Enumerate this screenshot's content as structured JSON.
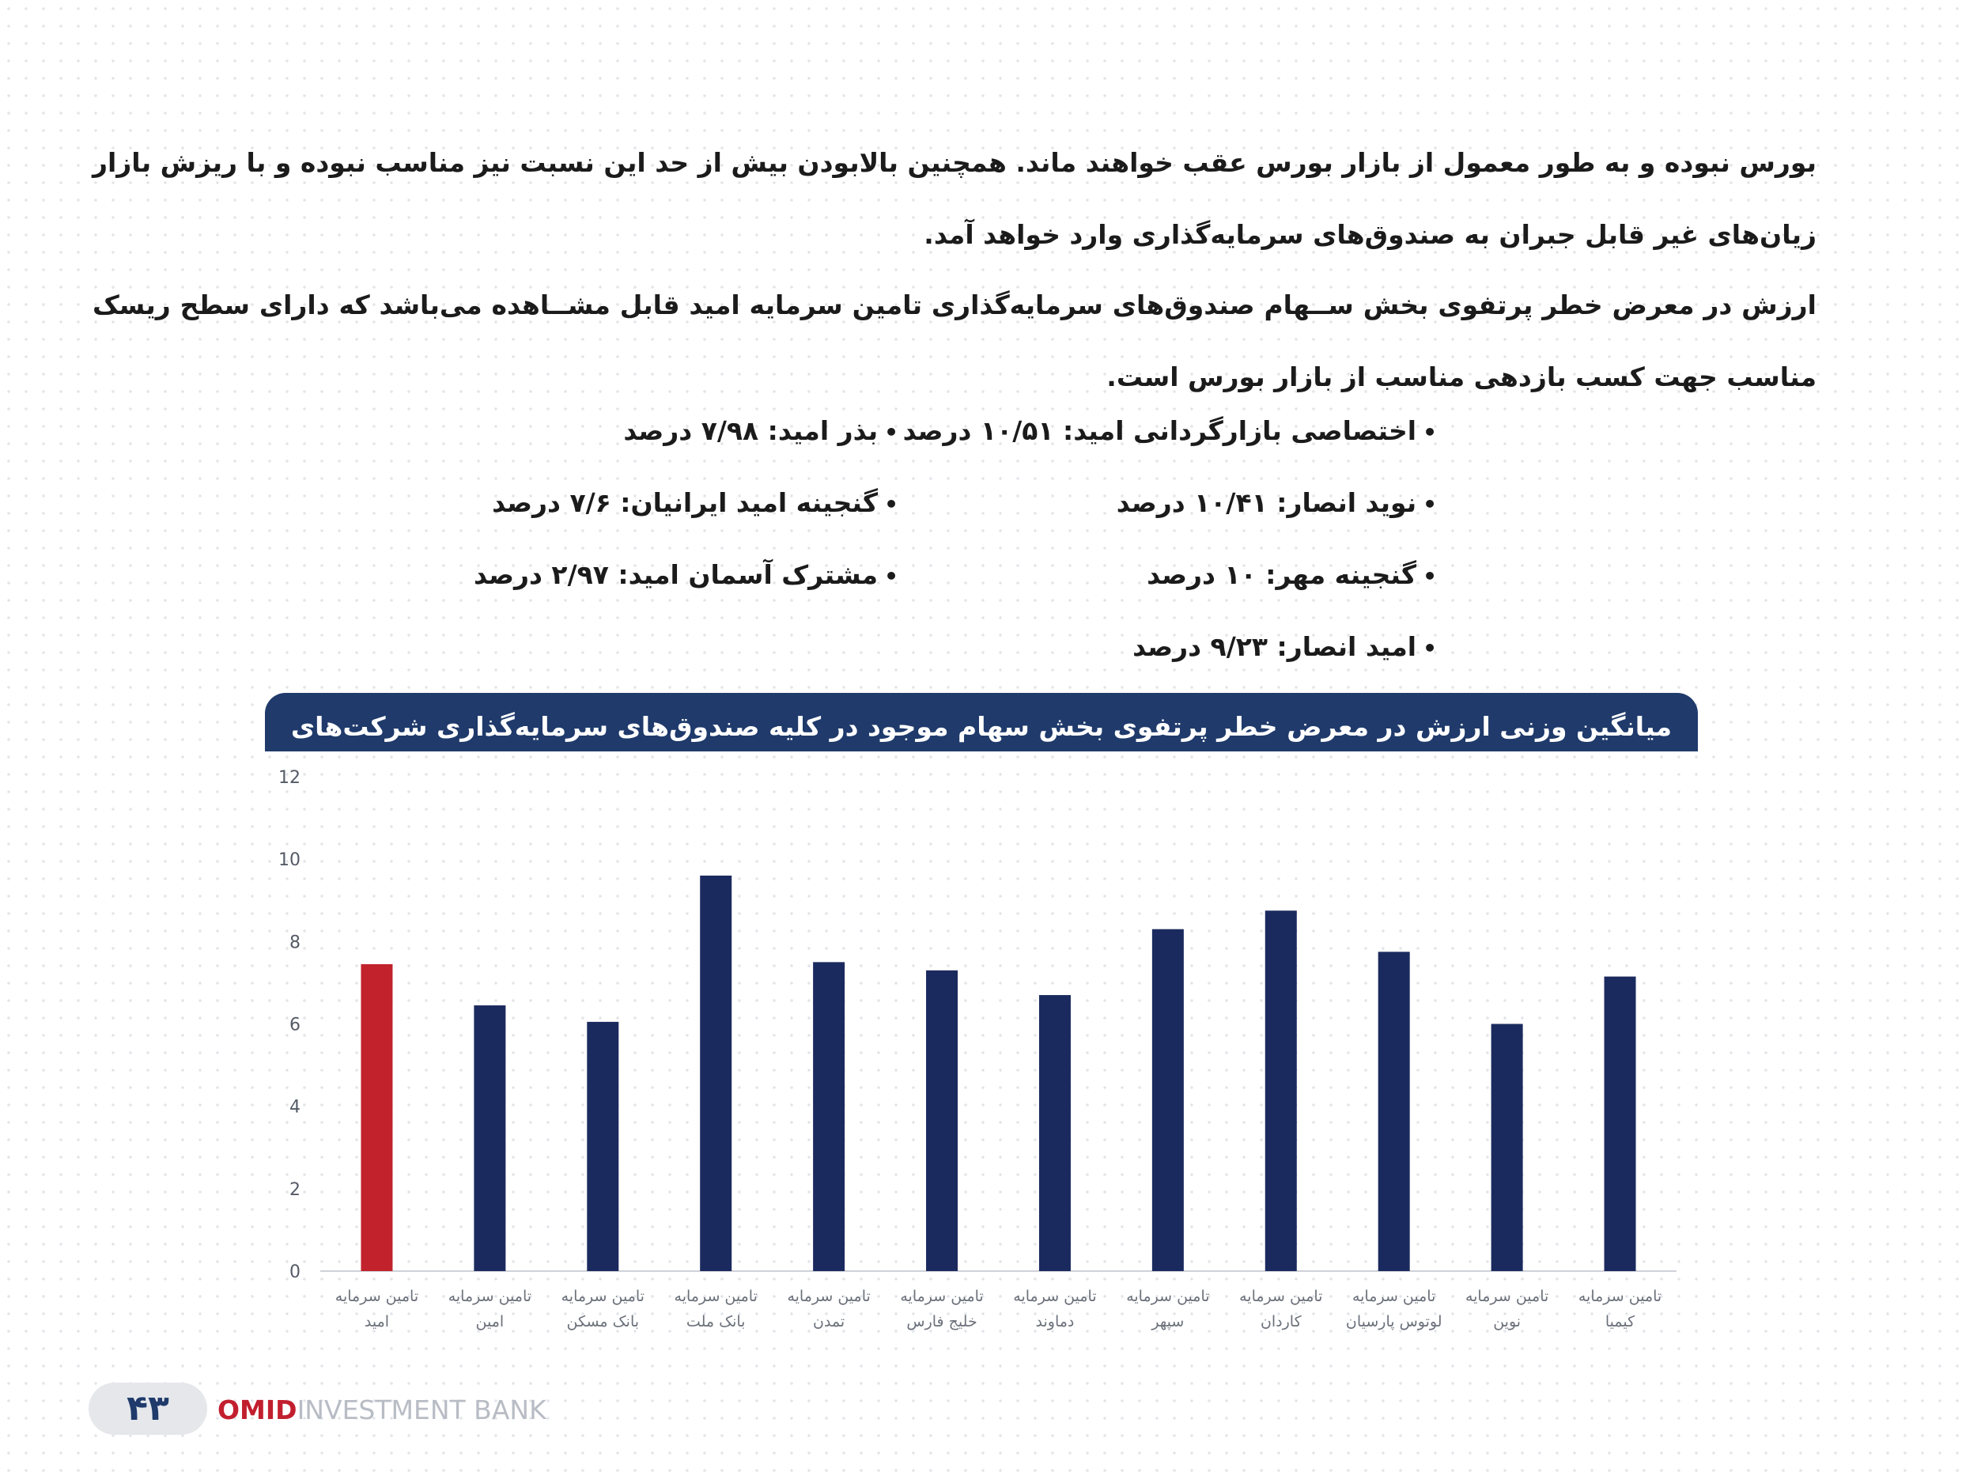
{
  "paragraphs": [
    "بورس نبوده و به طور معمول از بازار بورس عقب خواهند ماند. همچنین بالابودن بیش از حد این نسبت نیز مناسب نبوده و با ریزش بازار زیان‌های غیر قابل جبران به صندوق‌های سرمایه‌گذاری وارد خواهد آمد.",
    "ارزش در معرض خطر پرتفوی بخش ســهام صندوق‌های سرمایه‌گذاری تامین سرمایه امید قابل مشــاهده می‌باشد که دارای سطح ریسک مناسب جهت کسب بازدهی مناسب از بازار بورس است."
  ],
  "bullets_right": [
    "اختصاصی بازارگردانی امید: ۱۰/۵۱ درصد",
    "نوید انصار: ۱۰/۴۱ درصد",
    "گنجینه مهر: ۱۰ درصد",
    "امید انصار: ۹/۲۳ درصد"
  ],
  "bullets_left": [
    "بذر امید: ۷/۹۸ درصد",
    "گنجینه امید ایرانیان: ۷/۶ درصد",
    "مشترک آسمان امید: ۲/۹۷ درصد"
  ],
  "chart_header": "میانگین وزنی ارزش در معرض خطر  پرتفوی بخش سهام موجود در کلیه صندوق‌های سرمایه‌گذاری شرکت‌های تامین سرمایه",
  "chart_data": {
    "type": "bar",
    "title": "میانگین وزنی ارزش در معرض خطر  پرتفوی بخش سهام موجود در کلیه صندوق‌های سرمایه‌گذاری شرکت‌های تامین سرمایه",
    "categories": [
      [
        "تامین سرمایه",
        "امید"
      ],
      [
        "تامین سرمایه",
        "امین"
      ],
      [
        "تامین سرمایه",
        "بانک مسکن"
      ],
      [
        "تامین سرمایه",
        "بانک ملت"
      ],
      [
        "تامین سرمایه",
        "تمدن"
      ],
      [
        "تامین سرمایه",
        "خلیج فارس"
      ],
      [
        "تامین سرمایه",
        "دماوند"
      ],
      [
        "تامین سرمایه",
        "سپهر"
      ],
      [
        "تامین سرمایه",
        "کاردان"
      ],
      [
        "تامین سرمایه",
        "لوتوس پارسیان"
      ],
      [
        "تامین سرمایه",
        "نوین"
      ],
      [
        "تامین سرمایه",
        "کیمیا"
      ]
    ],
    "values": [
      7.45,
      6.45,
      6.05,
      9.6,
      7.5,
      7.3,
      6.7,
      8.3,
      8.75,
      7.75,
      6.0,
      7.15
    ],
    "highlight_index": 0,
    "colors": {
      "bar": "#1b2a5e",
      "highlight": "#c1222c",
      "axis": "#cfd2d8"
    },
    "ylim": [
      0,
      12
    ],
    "yticks": [
      0,
      2,
      4,
      6,
      8,
      10,
      12
    ],
    "grid": false,
    "legend": "none"
  },
  "footer": {
    "page_number": "۴۳",
    "brand_bold": "OMID",
    "brand_light": "INVESTMENT BANK"
  }
}
